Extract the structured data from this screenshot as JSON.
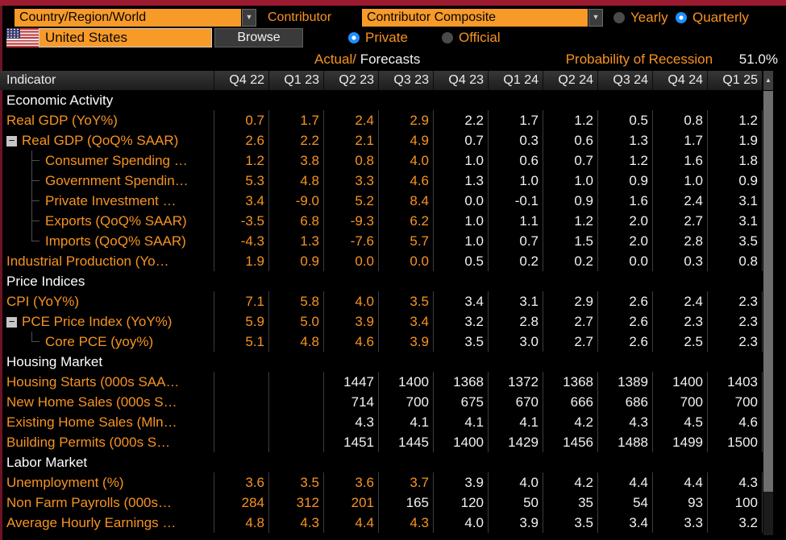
{
  "colors": {
    "accent_orange": "#f79a28",
    "actual_value_orange": "#f79320",
    "forecast_value_white": "#f2f2f2",
    "top_bar_red": "#9d1b30",
    "radio_selected_blue": "#1e8fff"
  },
  "icons": {
    "dropdown_arrow": "▼",
    "scroll_up_arrow": "▲",
    "collapse_minus": "−",
    "flag": "us-flag"
  },
  "toolbar": {
    "region_dropdown": {
      "value": "Country/Region/World"
    },
    "contributor_label": "Contributor",
    "contributor_dropdown": {
      "value": "Contributor Composite"
    },
    "period_radios": [
      {
        "label": "Yearly",
        "selected": false
      },
      {
        "label": "Quarterly",
        "selected": true
      }
    ],
    "country_input": {
      "value": "United States"
    },
    "browse_button": "Browse",
    "source_radios": [
      {
        "label": "Private",
        "selected": true
      },
      {
        "label": "Official",
        "selected": false
      }
    ],
    "actual_label": "Actual/",
    "forecasts_label": "Forecasts",
    "recession_label": "Probability of Recession",
    "recession_value": "51.0%"
  },
  "table": {
    "indicator_header": "Indicator",
    "columns": [
      "Q4 22",
      "Q1 23",
      "Q2 23",
      "Q3 23",
      "Q4 23",
      "Q1 24",
      "Q2 24",
      "Q3 24",
      "Q4 24",
      "Q1 25"
    ],
    "rows": [
      {
        "type": "section",
        "label": "Economic Activity"
      },
      {
        "type": "data",
        "label": "Real GDP (YoY%)",
        "indent": 0,
        "expandable": false,
        "tree": null,
        "values": [
          "0.7",
          "1.7",
          "2.4",
          "2.9",
          "2.2",
          "1.7",
          "1.2",
          "0.5",
          "0.8",
          "1.2"
        ],
        "actual_count": 4
      },
      {
        "type": "data",
        "label": "Real GDP (QoQ% SAAR)",
        "indent": 0,
        "expandable": true,
        "tree": null,
        "values": [
          "2.6",
          "2.2",
          "2.1",
          "4.9",
          "0.7",
          "0.3",
          "0.6",
          "1.3",
          "1.7",
          "1.9"
        ],
        "actual_count": 4
      },
      {
        "type": "data",
        "label": "Consumer Spending …",
        "indent": 1,
        "expandable": false,
        "tree": "mid",
        "values": [
          "1.2",
          "3.8",
          "0.8",
          "4.0",
          "1.0",
          "0.6",
          "0.7",
          "1.2",
          "1.6",
          "1.8"
        ],
        "actual_count": 4
      },
      {
        "type": "data",
        "label": "Government Spendin…",
        "indent": 1,
        "expandable": false,
        "tree": "mid",
        "values": [
          "5.3",
          "4.8",
          "3.3",
          "4.6",
          "1.3",
          "1.0",
          "1.0",
          "0.9",
          "1.0",
          "0.9"
        ],
        "actual_count": 4
      },
      {
        "type": "data",
        "label": "Private Investment …",
        "indent": 1,
        "expandable": false,
        "tree": "mid",
        "values": [
          "3.4",
          "-9.0",
          "5.2",
          "8.4",
          "0.0",
          "-0.1",
          "0.9",
          "1.6",
          "2.4",
          "3.1"
        ],
        "actual_count": 4
      },
      {
        "type": "data",
        "label": "Exports (QoQ% SAAR)",
        "indent": 1,
        "expandable": false,
        "tree": "mid",
        "values": [
          "-3.5",
          "6.8",
          "-9.3",
          "6.2",
          "1.0",
          "1.1",
          "1.2",
          "2.0",
          "2.7",
          "3.1"
        ],
        "actual_count": 4
      },
      {
        "type": "data",
        "label": "Imports (QoQ% SAAR)",
        "indent": 1,
        "expandable": false,
        "tree": "last",
        "values": [
          "-4.3",
          "1.3",
          "-7.6",
          "5.7",
          "1.0",
          "0.7",
          "1.5",
          "2.0",
          "2.8",
          "3.5"
        ],
        "actual_count": 4
      },
      {
        "type": "data",
        "label": "Industrial Production (Yo…",
        "indent": 0,
        "expandable": false,
        "tree": null,
        "values": [
          "1.9",
          "0.9",
          "0.0",
          "0.0",
          "0.5",
          "0.2",
          "0.2",
          "0.0",
          "0.3",
          "0.8"
        ],
        "actual_count": 4
      },
      {
        "type": "section",
        "label": "Price Indices"
      },
      {
        "type": "data",
        "label": "CPI (YoY%)",
        "indent": 0,
        "expandable": false,
        "tree": null,
        "values": [
          "7.1",
          "5.8",
          "4.0",
          "3.5",
          "3.4",
          "3.1",
          "2.9",
          "2.6",
          "2.4",
          "2.3"
        ],
        "actual_count": 4
      },
      {
        "type": "data",
        "label": "PCE Price Index (YoY%)",
        "indent": 0,
        "expandable": true,
        "tree": null,
        "values": [
          "5.9",
          "5.0",
          "3.9",
          "3.4",
          "3.2",
          "2.8",
          "2.7",
          "2.6",
          "2.3",
          "2.3"
        ],
        "actual_count": 4
      },
      {
        "type": "data",
        "label": "Core PCE (yoy%)",
        "indent": 1,
        "expandable": false,
        "tree": "last",
        "values": [
          "5.1",
          "4.8",
          "4.6",
          "3.9",
          "3.5",
          "3.0",
          "2.7",
          "2.6",
          "2.5",
          "2.3"
        ],
        "actual_count": 4
      },
      {
        "type": "section",
        "label": "Housing Market"
      },
      {
        "type": "data",
        "label": "Housing Starts (000s SAA…",
        "indent": 0,
        "expandable": false,
        "tree": null,
        "values": [
          "",
          "",
          "1447",
          "1400",
          "1368",
          "1372",
          "1368",
          "1389",
          "1400",
          "1403"
        ],
        "actual_count": 0
      },
      {
        "type": "data",
        "label": "New Home Sales (000s S…",
        "indent": 0,
        "expandable": false,
        "tree": null,
        "values": [
          "",
          "",
          "714",
          "700",
          "675",
          "670",
          "666",
          "686",
          "700",
          "700"
        ],
        "actual_count": 0
      },
      {
        "type": "data",
        "label": "Existing Home Sales (Mln…",
        "indent": 0,
        "expandable": false,
        "tree": null,
        "values": [
          "",
          "",
          "4.3",
          "4.1",
          "4.1",
          "4.1",
          "4.2",
          "4.3",
          "4.5",
          "4.6"
        ],
        "actual_count": 0
      },
      {
        "type": "data",
        "label": "Building Permits (000s S…",
        "indent": 0,
        "expandable": false,
        "tree": null,
        "values": [
          "",
          "",
          "1451",
          "1445",
          "1400",
          "1429",
          "1456",
          "1488",
          "1499",
          "1500"
        ],
        "actual_count": 0
      },
      {
        "type": "section",
        "label": "Labor Market"
      },
      {
        "type": "data",
        "label": "Unemployment (%)",
        "indent": 0,
        "expandable": false,
        "tree": null,
        "values": [
          "3.6",
          "3.5",
          "3.6",
          "3.7",
          "3.9",
          "4.0",
          "4.2",
          "4.4",
          "4.4",
          "4.3"
        ],
        "actual_count": 4
      },
      {
        "type": "data",
        "label": "Non Farm Payrolls (000s…",
        "indent": 0,
        "expandable": false,
        "tree": null,
        "values": [
          "284",
          "312",
          "201",
          "165",
          "120",
          "50",
          "35",
          "54",
          "93",
          "100"
        ],
        "actual_count": 3
      },
      {
        "type": "data",
        "label": "Average Hourly Earnings …",
        "indent": 0,
        "expandable": false,
        "tree": null,
        "values": [
          "4.8",
          "4.3",
          "4.4",
          "4.3",
          "4.0",
          "3.9",
          "3.5",
          "3.4",
          "3.3",
          "3.2"
        ],
        "actual_count": 4
      }
    ]
  }
}
